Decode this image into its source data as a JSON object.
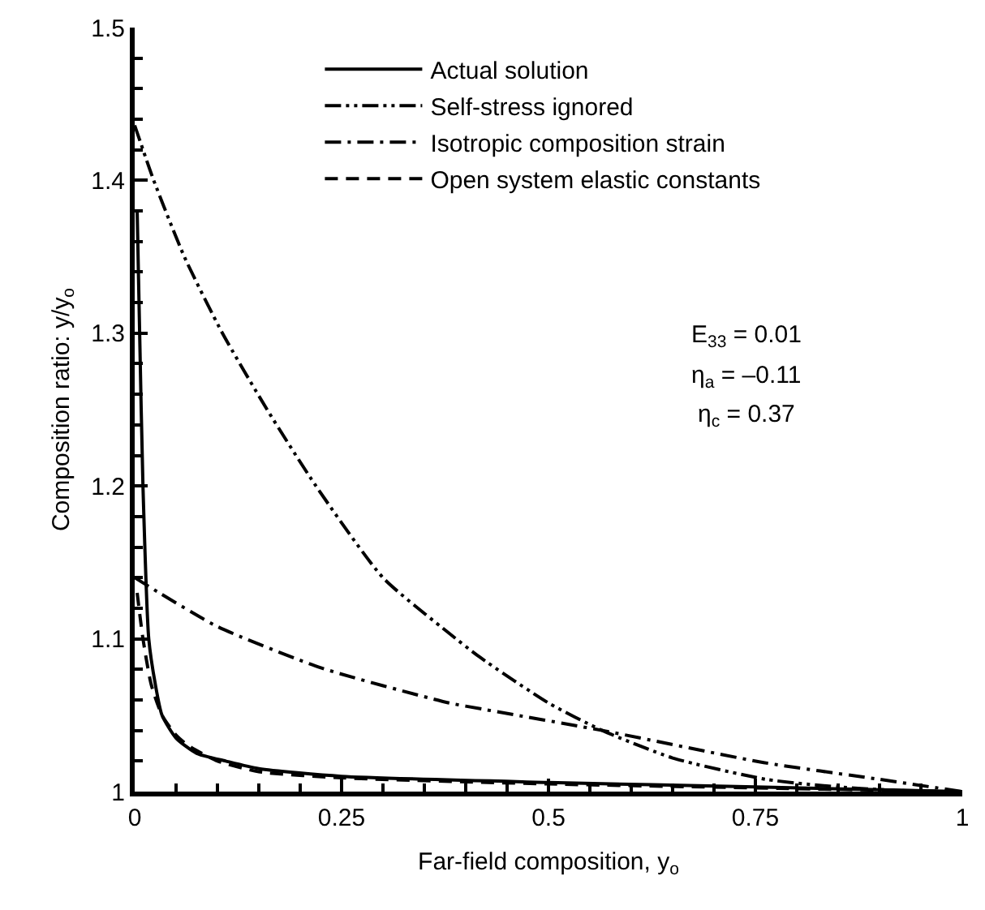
{
  "chart_data": {
    "type": "line",
    "xlabel": "Far-field composition, y$_{o}$",
    "ylabel": "Composition ratio: y/y$_{o}$",
    "annotations": [
      "E$_{33}$ = 0.01",
      "η$_{a}$ = –0.11",
      "η$_{c}$ = 0.37"
    ],
    "xlim": [
      0,
      1
    ],
    "ylim": [
      1,
      1.5
    ],
    "xticks": [
      0,
      0.25,
      0.5,
      0.75,
      1
    ],
    "yticks": [
      1,
      1.1,
      1.2,
      1.3,
      1.4,
      1.5
    ],
    "grid": false,
    "legend": "top",
    "marker": "none",
    "series": [
      {
        "name": "Actual solution",
        "color": "#000000",
        "line_style": "solid",
        "x": [
          0.003,
          0.006,
          0.01,
          0.017,
          0.025,
          0.033,
          0.05,
          0.075,
          0.11,
          0.15,
          0.25,
          0.5,
          0.75,
          1
        ],
        "values": [
          1.38,
          1.3,
          1.2,
          1.1,
          1.07,
          1.05,
          1.035,
          1.025,
          1.02,
          1.015,
          1.01,
          1.006,
          1.003,
          1.0
        ]
      },
      {
        "name": "Self-stress ignored",
        "color": "#000000",
        "line_style": "dashdotdot",
        "x": [
          0,
          0.023,
          0.06,
          0.106,
          0.16,
          0.219,
          0.3,
          0.379,
          0.417,
          0.5,
          0.565,
          0.65,
          0.763,
          0.85,
          0.95
        ],
        "values": [
          1.436,
          1.4,
          1.35,
          1.3,
          1.25,
          1.2,
          1.14,
          1.104,
          1.088,
          1.058,
          1.04,
          1.022,
          1.008,
          1.003,
          1.0
        ]
      },
      {
        "name": "Isotropic composition strain",
        "color": "#000000",
        "line_style": "dashdot",
        "x": [
          0,
          0.03,
          0.1,
          0.225,
          0.38,
          0.42,
          0.565,
          0.76,
          0.9,
          1
        ],
        "values": [
          1.14,
          1.13,
          1.108,
          1.081,
          1.058,
          1.054,
          1.04,
          1.019,
          1.008,
          1.0
        ]
      },
      {
        "name": "Open system elastic constants",
        "color": "#000000",
        "line_style": "dashed",
        "x": [
          0.003,
          0.01,
          0.02,
          0.033,
          0.05,
          0.065,
          0.1,
          0.15,
          0.25,
          0.5,
          1
        ],
        "values": [
          1.13,
          1.1,
          1.07,
          1.05,
          1.037,
          1.03,
          1.02,
          1.013,
          1.009,
          1.005,
          1.0
        ]
      }
    ]
  }
}
